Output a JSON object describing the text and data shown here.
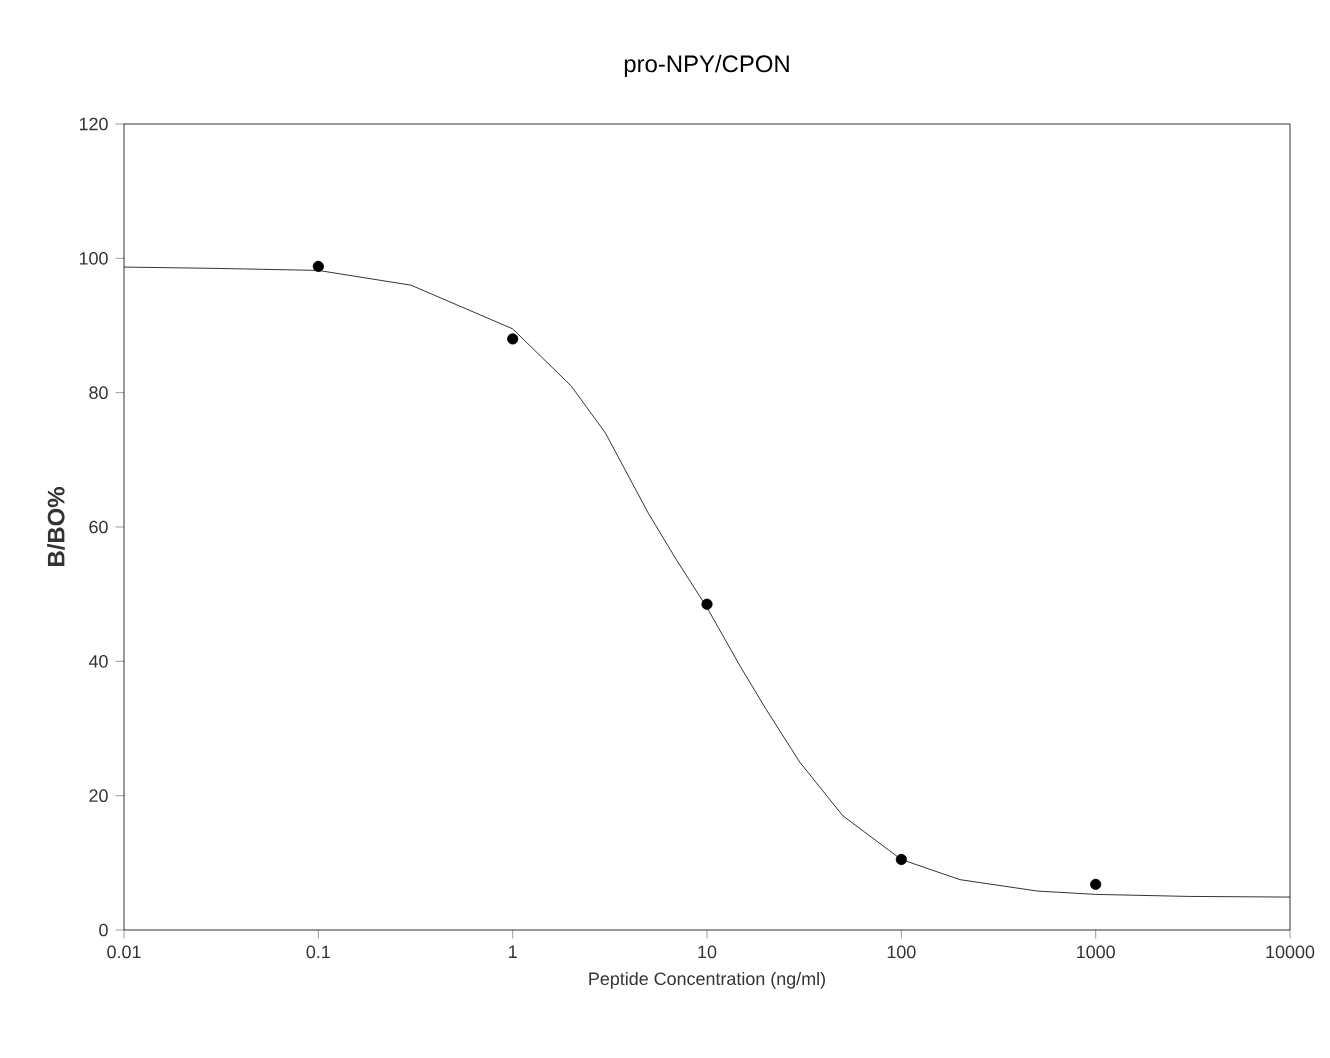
{
  "chart_data": {
    "type": "scatter",
    "title": "pro-NPY/CPON",
    "xlabel": "Peptide Concentration (ng/ml)",
    "ylabel": "B/BO%",
    "log": "x",
    "grid": false,
    "xlim": [
      0.01,
      10000
    ],
    "xticks": [
      0.01,
      0.1,
      1,
      10,
      100,
      1000,
      10000
    ],
    "ylim": [
      0,
      120
    ],
    "yticks": [
      0,
      20,
      40,
      60,
      80,
      100,
      120
    ],
    "series": [
      {
        "marker": "circle",
        "color": "#000000",
        "x": [
          0.1,
          1,
          10,
          100,
          1000
        ],
        "values": [
          98.8,
          88,
          48.5,
          10.5,
          6.8
        ]
      },
      {
        "type": "line",
        "marker": "none",
        "line_style": "solid",
        "color": "#000000",
        "x": [
          0.01,
          0.03,
          0.1,
          0.3,
          1,
          2,
          3,
          5,
          7,
          10,
          15,
          20,
          30,
          50,
          100,
          200,
          500,
          1000,
          3000,
          10000
        ],
        "values": [
          98.7,
          98.5,
          98.2,
          96,
          89.5,
          81,
          74,
          62,
          55,
          48,
          39,
          33,
          25,
          17,
          10.5,
          7.5,
          5.8,
          5.3,
          5,
          4.9
        ]
      }
    ]
  }
}
